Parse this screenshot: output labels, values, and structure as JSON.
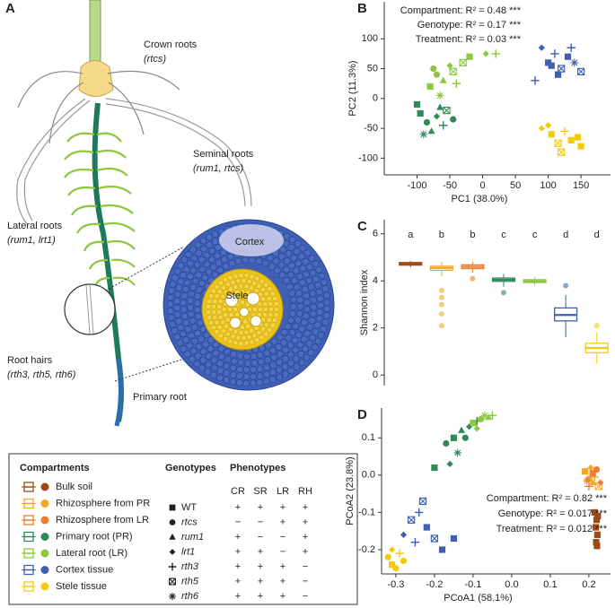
{
  "panel_a": {
    "panel": "A",
    "crown_roots": "Crown roots",
    "crown_roots_genotypes": "(rtcs)",
    "seminal_roots": "Seminal roots",
    "seminal_roots_genotypes": "(rum1, rtcs)",
    "lateral_roots": "Lateral roots",
    "lateral_roots_genotypes": "(rum1, lrt1)",
    "root_hairs": "Root hairs",
    "root_hairs_genotypes": "(rth3, rth5, rth6)",
    "primary_root": "Primary root",
    "cortex": "Cortex",
    "stele": "Stele"
  },
  "legend": {
    "compartments_title": "Compartments",
    "compartments": [
      {
        "name": "Bulk soil",
        "color": "#9b4a17"
      },
      {
        "name": "Rhizosphere from PR",
        "color": "#f5a623"
      },
      {
        "name": "Rhizosphere from LR",
        "color": "#ee7e2d"
      },
      {
        "name": "Primary root (PR)",
        "color": "#2e8b57"
      },
      {
        "name": "Lateral root (LR)",
        "color": "#8dc63f"
      },
      {
        "name": "Cortex tissue",
        "color": "#3e5fb3"
      },
      {
        "name": "Stele tissue",
        "color": "#f2cc0c"
      }
    ],
    "genotypes_title": "Genotypes",
    "genotypes": [
      {
        "name": "WT",
        "marker": "square"
      },
      {
        "name": "rtcs",
        "marker": "circle"
      },
      {
        "name": "rum1",
        "marker": "triangle"
      },
      {
        "name": "lrt1",
        "marker": "diamond"
      },
      {
        "name": "rth3",
        "marker": "plus"
      },
      {
        "name": "rth5",
        "marker": "boxx"
      },
      {
        "name": "rth6",
        "marker": "asterisk"
      }
    ],
    "phenotypes_title": "Phenotypes",
    "phenotype_columns": [
      "CR",
      "SR",
      "LR",
      "RH"
    ],
    "phenotypes": [
      [
        "+",
        "+",
        "+",
        "+"
      ],
      [
        "−",
        "−",
        "+",
        "+"
      ],
      [
        "+",
        "−",
        "−",
        "+"
      ],
      [
        "+",
        "+",
        "−",
        "+"
      ],
      [
        "+",
        "+",
        "+",
        "−"
      ],
      [
        "+",
        "+",
        "+",
        "−"
      ],
      [
        "+",
        "+",
        "+",
        "−"
      ]
    ]
  },
  "chart_data": [
    {
      "type": "scatter",
      "panel": "B",
      "xlabel": "PC1 (38.0%)",
      "ylabel": "PC2 (11.3%)",
      "xlim": [
        -150,
        195
      ],
      "ylim": [
        -128,
        162
      ],
      "xticks": [
        -100,
        -50,
        0,
        50,
        100,
        150
      ],
      "yticks": [
        -100,
        -50,
        0,
        50,
        100
      ],
      "annotations": [
        "Compartment: R² = 0.48 ***",
        "Genotype: R² = 0.17 ***",
        "Treatment: R² = 0.03 ***"
      ],
      "series": [
        {
          "color": "#2e8b57",
          "x": [
            -95,
            -85,
            -78,
            -70,
            -60,
            -55,
            -90,
            -45,
            -65,
            -100
          ],
          "values": [
            -25,
            -40,
            -55,
            -30,
            -45,
            -20,
            -60,
            -35,
            -15,
            -10
          ],
          "markers": [
            "square",
            "circle",
            "triangle",
            "diamond",
            "plus",
            "boxx",
            "asterisk",
            "circle",
            "triangle",
            "square"
          ]
        },
        {
          "color": "#8dc63f",
          "x": [
            -80,
            -70,
            -60,
            -50,
            -40,
            -30,
            -65,
            -20,
            20,
            5,
            -45,
            -75
          ],
          "values": [
            20,
            40,
            30,
            55,
            25,
            60,
            5,
            70,
            75,
            75,
            45,
            50
          ],
          "markers": [
            "square",
            "circle",
            "triangle",
            "diamond",
            "plus",
            "boxx",
            "asterisk",
            "square",
            "plus",
            "diamond",
            "boxx",
            "circle"
          ]
        },
        {
          "color": "#3e5fb3",
          "x": [
            90,
            100,
            110,
            120,
            130,
            140,
            150,
            115,
            135,
            105,
            80
          ],
          "values": [
            85,
            60,
            75,
            50,
            70,
            60,
            45,
            40,
            85,
            55,
            30
          ],
          "markers": [
            "diamond",
            "square",
            "plus",
            "boxx",
            "square",
            "asterisk",
            "boxx",
            "square",
            "plus",
            "square",
            "plus"
          ]
        },
        {
          "color": "#f2cc0c",
          "x": [
            90,
            105,
            115,
            125,
            135,
            145,
            120,
            100,
            150
          ],
          "values": [
            -50,
            -60,
            -75,
            -55,
            -70,
            -65,
            -90,
            -45,
            -80
          ],
          "markers": [
            "diamond",
            "square",
            "boxx",
            "plus",
            "square",
            "square",
            "boxx",
            "diamond",
            "square"
          ]
        }
      ]
    },
    {
      "type": "box",
      "panel": "C",
      "ylabel": "Shannon index",
      "ylim": [
        -0.45,
        6.6
      ],
      "yticks": [
        0,
        2,
        4,
        6
      ],
      "letters": [
        "a",
        "b",
        "b",
        "c",
        "c",
        "d",
        "d"
      ],
      "boxes": [
        {
          "color": "#9b4a17",
          "whisker_low": 4.58,
          "q1": 4.67,
          "median": 4.72,
          "q3": 4.78,
          "whisker_high": 4.85,
          "outliers": []
        },
        {
          "color": "#f5a623",
          "whisker_low": 4.2,
          "q1": 4.45,
          "median": 4.55,
          "q3": 4.62,
          "whisker_high": 4.8,
          "outliers": [
            2.1,
            2.6,
            3.0,
            3.3,
            3.6
          ]
        },
        {
          "color": "#ee7e2d",
          "whisker_low": 4.35,
          "q1": 4.52,
          "median": 4.6,
          "q3": 4.68,
          "whisker_high": 4.82,
          "outliers": [
            4.1
          ]
        },
        {
          "color": "#2e8b57",
          "whisker_low": 3.75,
          "q1": 3.98,
          "median": 4.05,
          "q3": 4.12,
          "whisker_high": 4.3,
          "outliers": [
            3.5
          ]
        },
        {
          "color": "#8dc63f",
          "whisker_low": 3.8,
          "q1": 3.93,
          "median": 3.98,
          "q3": 4.05,
          "whisker_high": 4.15,
          "outliers": []
        },
        {
          "color": "#3e5fb3",
          "whisker_low": 1.6,
          "q1": 2.3,
          "median": 2.55,
          "q3": 2.85,
          "whisker_high": 3.4,
          "outliers": [
            3.8
          ]
        },
        {
          "color": "#f2cc0c",
          "whisker_low": 0.5,
          "q1": 0.95,
          "median": 1.15,
          "q3": 1.35,
          "whisker_high": 1.8,
          "outliers": [
            2.1
          ]
        }
      ]
    },
    {
      "type": "scatter",
      "panel": "D",
      "xlabel": "PCoA1 (58.1%)",
      "ylabel": "PCoA2 (23.8%)",
      "xlim": [
        -0.337,
        0.256
      ],
      "ylim": [
        -0.265,
        0.18
      ],
      "xticks": [
        -0.3,
        -0.2,
        -0.1,
        {
          "value": 0,
          "label": "0.0"
        },
        0.1,
        0.2
      ],
      "yticks": [
        -0.2,
        -0.1,
        {
          "value": 0,
          "label": "0.0"
        },
        0.1
      ],
      "annotations": [
        "Compartment: R² = 0.82 ***",
        "Genotype: R² = 0.017 ***",
        "Treatment: R² = 0.012 ***"
      ],
      "series": [
        {
          "color": "#9b4a17",
          "x": [
            0.215,
            0.22,
            0.218,
            0.222,
            0.219,
            0.221,
            0.223
          ],
          "values": [
            -0.1,
            -0.12,
            -0.14,
            -0.16,
            -0.18,
            -0.19,
            -0.11
          ],
          "markers": [
            "square",
            "square",
            "square",
            "square",
            "square",
            "square",
            "square"
          ]
        },
        {
          "color": "#f5a623",
          "x": [
            0.19,
            0.2,
            0.21,
            0.205,
            0.215,
            0.225
          ],
          "values": [
            0.01,
            -0.01,
            -0.02,
            0.02,
            -0.005,
            -0.03
          ],
          "markers": [
            "square",
            "circle",
            "triangle",
            "diamond",
            "plus",
            "boxx"
          ]
        },
        {
          "color": "#ee7e2d",
          "x": [
            0.195,
            0.21,
            0.22,
            0.23,
            0.2
          ],
          "values": [
            -0.015,
            0.005,
            0.015,
            -0.02,
            -0.03
          ],
          "markers": [
            "asterisk",
            "square",
            "circle",
            "diamond",
            "plus"
          ]
        },
        {
          "color": "#2e8b57",
          "x": [
            -0.17,
            -0.15,
            -0.13,
            -0.11,
            -0.09,
            -0.16,
            -0.2,
            -0.14,
            -0.12
          ],
          "values": [
            0.085,
            0.1,
            0.12,
            0.13,
            0.145,
            0.03,
            0.02,
            0.06,
            0.1
          ],
          "markers": [
            "circle",
            "square",
            "triangle",
            "diamond",
            "plus",
            "diamond",
            "square",
            "asterisk",
            "circle"
          ]
        },
        {
          "color": "#8dc63f",
          "x": [
            -0.1,
            -0.08,
            -0.06,
            -0.05,
            -0.09,
            -0.07
          ],
          "values": [
            0.14,
            0.15,
            0.155,
            0.16,
            0.125,
            0.16
          ],
          "markers": [
            "square",
            "circle",
            "triangle",
            "plus",
            "diamond",
            "asterisk"
          ]
        },
        {
          "color": "#3e5fb3",
          "x": [
            -0.26,
            -0.24,
            -0.22,
            -0.2,
            -0.25,
            -0.18,
            -0.23,
            -0.28,
            -0.15
          ],
          "values": [
            -0.12,
            -0.1,
            -0.14,
            -0.17,
            -0.18,
            -0.2,
            -0.07,
            -0.16,
            -0.17
          ],
          "markers": [
            "boxx",
            "plus",
            "square",
            "boxx",
            "plus",
            "square",
            "boxx",
            "diamond",
            "square"
          ]
        },
        {
          "color": "#f2cc0c",
          "x": [
            -0.32,
            -0.31,
            -0.3,
            -0.29,
            -0.31,
            -0.28
          ],
          "values": [
            -0.22,
            -0.24,
            -0.25,
            -0.21,
            -0.2,
            -0.23
          ],
          "markers": [
            "circle",
            "square",
            "circle",
            "plus",
            "diamond",
            "circle"
          ]
        }
      ]
    }
  ]
}
